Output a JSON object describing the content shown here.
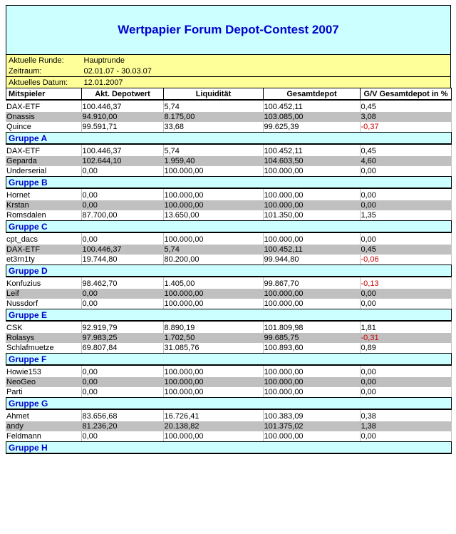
{
  "page_title": "Wertpapier Forum Depot-Contest 2007",
  "info": {
    "rows": [
      {
        "label": "Aktuelle Runde:",
        "value": "Hauptrunde"
      },
      {
        "label": "Zeitraum:",
        "value": "02.01.07 - 30.03.07"
      },
      {
        "label": "Aktuelles Datum:",
        "value": "12.01.2007"
      }
    ]
  },
  "table": {
    "columns": [
      "Mitspieler",
      "Akt. Depotwert",
      "Liquidität",
      "Gesamtdepot",
      "G/V Gesamtdepot in %"
    ],
    "groups": [
      {
        "name": "Gruppe A",
        "rows": [
          [
            "DAX-ETF",
            "100.446,37",
            "5,74",
            "100.452,11",
            "0,45"
          ],
          [
            "Onassis",
            "94.910,00",
            "8.175,00",
            "103.085,00",
            "3,08"
          ],
          [
            "Quince",
            "99.591,71",
            "33,68",
            "99.625,39",
            "-0,37"
          ]
        ]
      },
      {
        "name": "Gruppe B",
        "rows": [
          [
            "DAX-ETF",
            "100.446,37",
            "5,74",
            "100.452,11",
            "0,45"
          ],
          [
            "Geparda",
            "102.644,10",
            "1.959,40",
            "104.603,50",
            "4,60"
          ],
          [
            "Underserial",
            "0,00",
            "100.000,00",
            "100.000,00",
            "0,00"
          ]
        ]
      },
      {
        "name": "Gruppe C",
        "rows": [
          [
            "Hornet",
            "0,00",
            "100.000,00",
            "100.000,00",
            "0,00"
          ],
          [
            "Krstan",
            "0,00",
            "100.000,00",
            "100.000,00",
            "0,00"
          ],
          [
            "Romsdalen",
            "87.700,00",
            "13.650,00",
            "101.350,00",
            "1,35"
          ]
        ]
      },
      {
        "name": "Gruppe D",
        "rows": [
          [
            "cpt_dacs",
            "0,00",
            "100.000,00",
            "100.000,00",
            "0,00"
          ],
          [
            "DAX-ETF",
            "100.446,37",
            "5,74",
            "100.452,11",
            "0,45"
          ],
          [
            "et3rn1ty",
            "19.744,80",
            "80.200,00",
            "99.944,80",
            "-0,06"
          ]
        ]
      },
      {
        "name": "Gruppe E",
        "rows": [
          [
            "Konfuzius",
            "98.462,70",
            "1.405,00",
            "99.867,70",
            "-0,13"
          ],
          [
            "Leif",
            "0,00",
            "100.000,00",
            "100.000,00",
            "0,00"
          ],
          [
            "Nussdorf",
            "0,00",
            "100.000,00",
            "100.000,00",
            "0,00"
          ]
        ]
      },
      {
        "name": "Gruppe F",
        "rows": [
          [
            "CSK",
            "92.919,79",
            "8.890,19",
            "101.809,98",
            "1,81"
          ],
          [
            "Rolasys",
            "97.983,25",
            "1.702,50",
            "99.685,75",
            "-0,31"
          ],
          [
            "Schlafmuetze",
            "69.807,84",
            "31.085,76",
            "100.893,60",
            "0,89"
          ]
        ]
      },
      {
        "name": "Gruppe G",
        "rows": [
          [
            "Howie153",
            "0,00",
            "100.000,00",
            "100.000,00",
            "0,00"
          ],
          [
            "NeoGeo",
            "0,00",
            "100.000,00",
            "100.000,00",
            "0,00"
          ],
          [
            "Parti",
            "0,00",
            "100.000,00",
            "100.000,00",
            "0,00"
          ]
        ]
      },
      {
        "name": "Gruppe H",
        "rows": [
          [
            "Ahmet",
            "83.656,68",
            "16.726,41",
            "100.383,09",
            "0,38"
          ],
          [
            "andy",
            "81.236,20",
            "20.138,82",
            "101.375,02",
            "1,38"
          ],
          [
            "Feldmann",
            "0,00",
            "100.000,00",
            "100.000,00",
            "0,00"
          ]
        ]
      }
    ]
  },
  "colors": {
    "header_bg": "#CCFFFF",
    "info_bg": "#FFFF99",
    "row_alt_bg": "#C0C0C0",
    "title_text": "#0000CC",
    "negative_text": "#CC0000",
    "border_black": "#000000",
    "divider_gray": "#C0C0C0"
  }
}
